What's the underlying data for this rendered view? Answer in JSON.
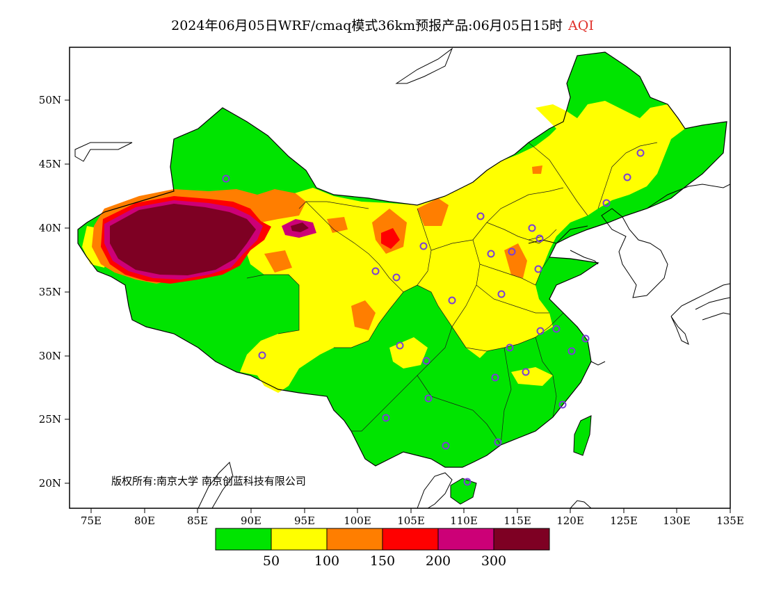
{
  "title": {
    "main": "2024年06月05日WRF/cmaq模式36km预报产品:06月05日15时",
    "product": "AQI",
    "product_color": "#e0302a"
  },
  "map": {
    "lat_ticks": [
      "50N",
      "45N",
      "40N",
      "35N",
      "30N",
      "25N",
      "20N"
    ],
    "lon_ticks": [
      "75E",
      "80E",
      "85E",
      "90E",
      "95E",
      "100E",
      "105E",
      "110E",
      "115E",
      "120E",
      "125E",
      "130E",
      "135E"
    ],
    "copyright": "版权所有:南京大学  南京创蓝科技有限公司",
    "station_marker_color": "#7a3fd6"
  },
  "legend": {
    "colors": [
      "#00e400",
      "#ffff00",
      "#ff7e00",
      "#ff0000",
      "#cc0077",
      "#7e0023"
    ],
    "labels": [
      "50",
      "100",
      "150",
      "200",
      "300"
    ]
  }
}
